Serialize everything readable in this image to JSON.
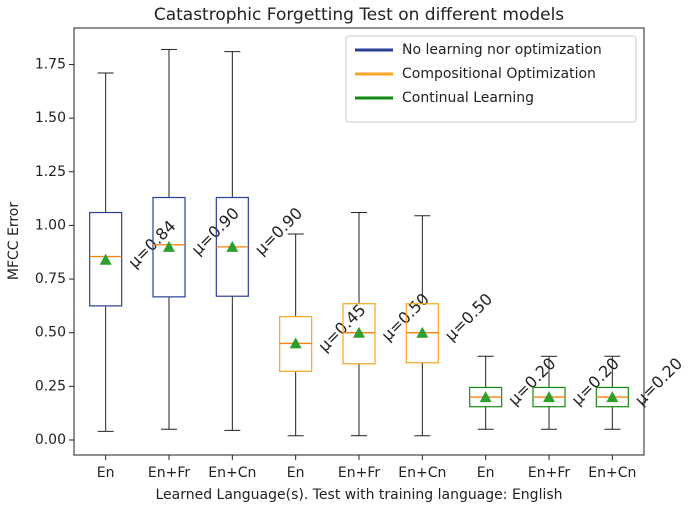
{
  "chart_data": {
    "type": "box",
    "title": "Catastrophic Forgetting Test on different models",
    "xlabel": "Learned Language(s). Test with training language: English",
    "ylabel": "MFCC Error",
    "categories": [
      "En",
      "En+Fr",
      "En+Cn",
      "En",
      "En+Fr",
      "En+Cn",
      "En",
      "En+Fr",
      "En+Cn"
    ],
    "ylim": [
      -0.07,
      1.92
    ],
    "yticks": [
      {
        "value": 0,
        "label": "0.00"
      },
      {
        "value": 0.25,
        "label": "0.25"
      },
      {
        "value": 0.5,
        "label": "0.50"
      },
      {
        "value": 0.75,
        "label": "0.75"
      },
      {
        "value": 1,
        "label": "1.00"
      },
      {
        "value": 1.25,
        "label": "1.25"
      },
      {
        "value": 1.5,
        "label": "1.50"
      },
      {
        "value": 1.75,
        "label": "1.75"
      }
    ],
    "legend": "upper right",
    "median_color": "#ff7f0e",
    "mean_color": "#2ca02c",
    "series": [
      {
        "name": "No learning nor optimization",
        "color": "#2b3f99",
        "whisker_low": [
          0.04,
          0.05,
          0.045
        ],
        "q1": [
          0.625,
          0.667,
          0.67
        ],
        "median": [
          0.855,
          0.91,
          0.9
        ],
        "q3": [
          1.06,
          1.13,
          1.13
        ],
        "whisker_high": [
          1.71,
          1.82,
          1.81
        ],
        "mean": [
          0.84,
          0.9,
          0.9
        ],
        "value_labels": [
          "μ=0.84",
          "μ=0.90",
          "μ=0.90"
        ]
      },
      {
        "name": "Compositional Optimization",
        "color": "#f5a623",
        "whisker_low": [
          0.02,
          0.02,
          0.02
        ],
        "q1": [
          0.32,
          0.355,
          0.36
        ],
        "median": [
          0.45,
          0.5,
          0.5
        ],
        "q3": [
          0.575,
          0.635,
          0.635
        ],
        "whisker_high": [
          0.96,
          1.06,
          1.045
        ],
        "mean": [
          0.45,
          0.5,
          0.5
        ],
        "value_labels": [
          "μ=0.45",
          "μ=0.50",
          "μ=0.50"
        ]
      },
      {
        "name": "Continual Learning",
        "color": "#138a13",
        "whisker_low": [
          0.05,
          0.05,
          0.05
        ],
        "q1": [
          0.155,
          0.155,
          0.155
        ],
        "median": [
          0.2,
          0.2,
          0.2
        ],
        "q3": [
          0.245,
          0.245,
          0.245
        ],
        "whisker_high": [
          0.39,
          0.39,
          0.39
        ],
        "mean": [
          0.2,
          0.2,
          0.2
        ],
        "value_labels": [
          "μ=0.20",
          "μ=0.20",
          "μ=0.20"
        ]
      }
    ]
  }
}
